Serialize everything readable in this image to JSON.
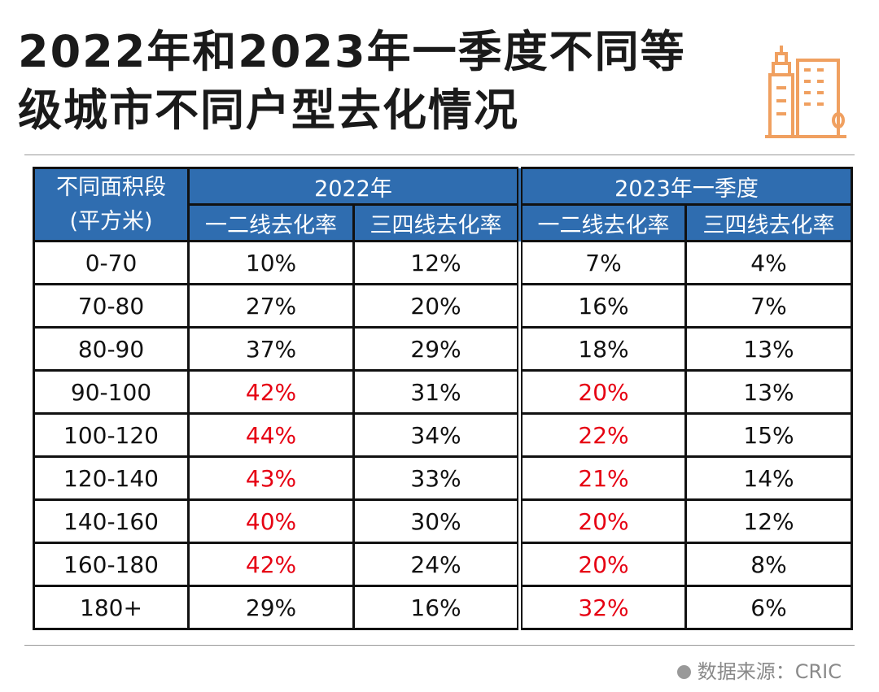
{
  "title_lines": [
    "2022年和2023年一季度不同等",
    "级城市不同户型去化情况"
  ],
  "source": "数据来源：CRIC",
  "colors": {
    "header": "#2f6db0",
    "highlight": "#e60012",
    "icon": "#f0a060"
  },
  "icon": "city-buildings-icon",
  "chart_data": {
    "type": "table",
    "row_header": [
      "不同面积段",
      "(平方米)"
    ],
    "groups": [
      "2022年",
      "2023年一季度"
    ],
    "columns": [
      "一二线去化率",
      "三四线去化率",
      "一二线去化率",
      "三四线去化率"
    ],
    "rows": [
      {
        "label": "0-70",
        "values": [
          "10%",
          "12%",
          "7%",
          "4%"
        ],
        "highlight": [
          false,
          false,
          false,
          false
        ]
      },
      {
        "label": "70-80",
        "values": [
          "27%",
          "20%",
          "16%",
          "7%"
        ],
        "highlight": [
          false,
          false,
          false,
          false
        ]
      },
      {
        "label": "80-90",
        "values": [
          "37%",
          "29%",
          "18%",
          "13%"
        ],
        "highlight": [
          false,
          false,
          false,
          false
        ]
      },
      {
        "label": "90-100",
        "values": [
          "42%",
          "31%",
          "20%",
          "13%"
        ],
        "highlight": [
          true,
          false,
          true,
          false
        ]
      },
      {
        "label": "100-120",
        "values": [
          "44%",
          "34%",
          "22%",
          "15%"
        ],
        "highlight": [
          true,
          false,
          true,
          false
        ]
      },
      {
        "label": "120-140",
        "values": [
          "43%",
          "33%",
          "21%",
          "14%"
        ],
        "highlight": [
          true,
          false,
          true,
          false
        ]
      },
      {
        "label": "140-160",
        "values": [
          "40%",
          "30%",
          "20%",
          "12%"
        ],
        "highlight": [
          true,
          false,
          true,
          false
        ]
      },
      {
        "label": "160-180",
        "values": [
          "42%",
          "24%",
          "20%",
          "8%"
        ],
        "highlight": [
          true,
          false,
          true,
          false
        ]
      },
      {
        "label": "180+",
        "values": [
          "29%",
          "16%",
          "32%",
          "6%"
        ],
        "highlight": [
          false,
          false,
          true,
          false
        ]
      }
    ]
  }
}
